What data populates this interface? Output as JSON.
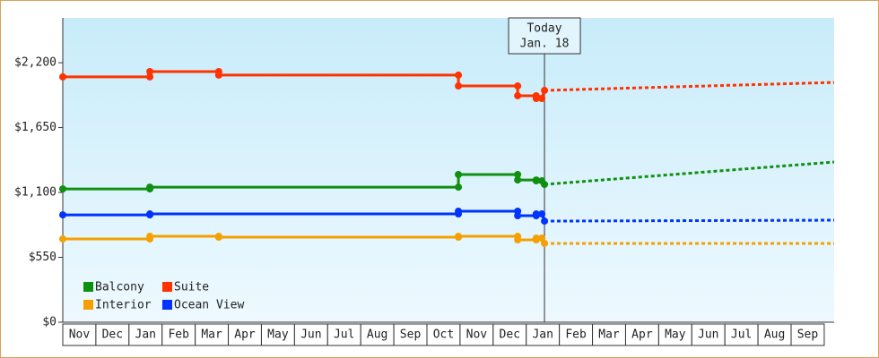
{
  "chart_data": {
    "type": "line",
    "ylim": [
      0,
      2580
    ],
    "yticks": [
      {
        "value": 0,
        "label": "$0"
      },
      {
        "value": 550,
        "label": "$550"
      },
      {
        "value": 1100,
        "label": "$1,100"
      },
      {
        "value": 1650,
        "label": "$1,650"
      },
      {
        "value": 2200,
        "label": "$2,200"
      }
    ],
    "xlim": [
      0,
      23.3
    ],
    "xticks": [
      {
        "value": 0.5,
        "label": "Nov"
      },
      {
        "value": 1.5,
        "label": "Dec"
      },
      {
        "value": 2.5,
        "label": "Jan"
      },
      {
        "value": 3.5,
        "label": "Feb"
      },
      {
        "value": 4.5,
        "label": "Mar"
      },
      {
        "value": 5.5,
        "label": "Apr"
      },
      {
        "value": 6.5,
        "label": "May"
      },
      {
        "value": 7.5,
        "label": "Jun"
      },
      {
        "value": 8.5,
        "label": "Jul"
      },
      {
        "value": 9.5,
        "label": "Aug"
      },
      {
        "value": 10.5,
        "label": "Sep"
      },
      {
        "value": 11.5,
        "label": "Oct"
      },
      {
        "value": 12.5,
        "label": "Nov"
      },
      {
        "value": 13.5,
        "label": "Dec"
      },
      {
        "value": 14.5,
        "label": "Jan"
      },
      {
        "value": 15.5,
        "label": "Feb"
      },
      {
        "value": 16.5,
        "label": "Mar"
      },
      {
        "value": 17.5,
        "label": "Apr"
      },
      {
        "value": 18.5,
        "label": "May"
      },
      {
        "value": 19.5,
        "label": "Jun"
      },
      {
        "value": 20.5,
        "label": "Jul"
      },
      {
        "value": 21.5,
        "label": "Aug"
      },
      {
        "value": 22.5,
        "label": "Sep"
      }
    ],
    "annotation": {
      "lines": [
        "Today",
        "Jan. 18"
      ],
      "x": 14.55
    },
    "series": [
      {
        "name": "Balcony",
        "color": "#109010",
        "x": [
          0,
          2.63,
          2.63,
          11.95,
          11.95,
          13.74,
          13.74,
          14.3,
          14.3,
          14.47,
          14.55
        ],
        "values": [
          1130,
          1130,
          1145,
          1145,
          1252,
          1252,
          1206,
          1206,
          1199,
          1199,
          1168
        ],
        "forecast": {
          "x": [
            14.55,
            23.3
          ],
          "values": [
            1168,
            1358
          ]
        }
      },
      {
        "name": "Suite",
        "color": "#ff3300",
        "x": [
          0,
          2.63,
          2.63,
          4.71,
          4.71,
          11.95,
          11.95,
          13.74,
          13.74,
          14.3,
          14.3,
          14.47,
          14.55
        ],
        "values": [
          2080,
          2080,
          2125,
          2125,
          2095,
          2095,
          2003,
          2003,
          1920,
          1920,
          1897,
          1897,
          1965
        ],
        "forecast": {
          "x": [
            14.55,
            23.3
          ],
          "values": [
            1965,
            2033
          ]
        }
      },
      {
        "name": "Interior",
        "color": "#f5a000",
        "x": [
          0,
          2.63,
          2.63,
          4.71,
          4.71,
          11.95,
          11.95,
          13.74,
          13.74,
          14.3,
          14.3,
          14.47,
          14.55
        ],
        "values": [
          706,
          706,
          728,
          728,
          721,
          721,
          728,
          728,
          698,
          698,
          713,
          713,
          668
        ],
        "forecast": {
          "x": [
            14.55,
            23.3
          ],
          "values": [
            668,
            668
          ]
        }
      },
      {
        "name": "Ocean View",
        "color": "#0033ff",
        "x": [
          0,
          2.63,
          2.63,
          11.95,
          11.95,
          13.74,
          13.74,
          14.3,
          14.3,
          14.47,
          14.55
        ],
        "values": [
          910,
          910,
          918,
          918,
          941,
          941,
          903,
          903,
          918,
          918,
          857
        ],
        "forecast": {
          "x": [
            14.55,
            23.3
          ],
          "values": [
            857,
            865
          ]
        }
      }
    ]
  }
}
